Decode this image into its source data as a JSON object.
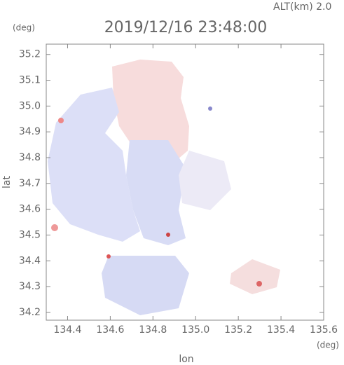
{
  "chart_data": {
    "type": "radar-map",
    "title": "2019/12/16 23:48:00",
    "altitude_label": "ALT(km) 2.0",
    "x_unit": "(deg)",
    "y_unit": "(deg)",
    "x_label": "lon",
    "y_label": "lat",
    "xlim": [
      134.3,
      135.6
    ],
    "xticks": [
      134.4,
      134.6,
      134.8,
      {
        "value": 135.0,
        "label": "135.0"
      },
      135.2,
      135.4,
      135.6
    ],
    "ylim": [
      34.17,
      35.24
    ],
    "yticks": [
      34.2,
      34.3,
      34.4,
      34.5,
      34.6,
      34.7,
      34.8,
      34.9,
      {
        "value": 35.0,
        "label": "35.0"
      },
      35.1,
      35.2
    ]
  }
}
